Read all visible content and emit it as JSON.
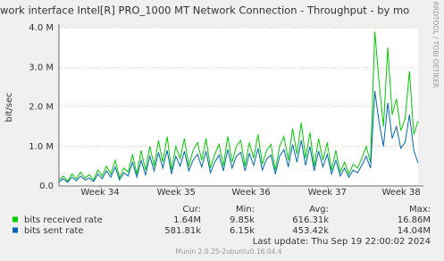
{
  "chart_data": {
    "type": "line",
    "title": "work interface Intel[R] PRO_1000 MT Network Connection - Throughput - by mo",
    "y_label": "bit/sec",
    "watermark": "RRDTOOL / TOBI OETIKER",
    "xlim": [
      0,
      83
    ],
    "xticks": [
      {
        "value": 9.5,
        "label": "Week 34"
      },
      {
        "value": 27.1,
        "label": "Week 35"
      },
      {
        "value": 44.4,
        "label": "Week 36"
      },
      {
        "value": 62,
        "label": "Week 37"
      },
      {
        "value": 79.1,
        "label": "Week 38"
      }
    ],
    "ylim": [
      0,
      4000000
    ],
    "yticks": [
      {
        "value": 0,
        "label": "0.0"
      },
      {
        "value": 1000000,
        "label": "1.0 M"
      },
      {
        "value": 2000000,
        "label": "2.0 M"
      },
      {
        "value": 3000000,
        "label": "3.0 M"
      },
      {
        "value": 4000000,
        "label": "4.0 M"
      }
    ],
    "grid": true,
    "stat_headers": [
      "Cur:",
      "Min:",
      "Avg:",
      "Max:"
    ],
    "series": [
      {
        "name": "bits received rate",
        "color": "#00cc00",
        "stats": [
          "1.64M",
          "9.85k",
          "616.31k",
          "16.86M"
        ],
        "values": [
          150000,
          250000,
          120000,
          300000,
          180000,
          350000,
          200000,
          280000,
          150000,
          400000,
          250000,
          500000,
          300000,
          650000,
          200000,
          450000,
          350000,
          800000,
          300000,
          900000,
          400000,
          1000000,
          500000,
          1150000,
          600000,
          1250000,
          400000,
          1000000,
          700000,
          1200000,
          500000,
          900000,
          1100000,
          650000,
          1200000,
          450000,
          800000,
          1050000,
          500000,
          1250000,
          600000,
          1000000,
          1150000,
          500000,
          1100000,
          700000,
          1300000,
          550000,
          900000,
          1050000,
          400000,
          1000000,
          1250000,
          650000,
          1450000,
          800000,
          1600000,
          700000,
          1350000,
          500000,
          1200000,
          650000,
          1100000,
          400000,
          900000,
          350000,
          600000,
          300000,
          550000,
          450000,
          700000,
          1000000,
          600000,
          3900000,
          2600000,
          1500000,
          3500000,
          1800000,
          2200000,
          1400000,
          1700000,
          2900000,
          1300000,
          1640000
        ]
      },
      {
        "name": "bits sent rate",
        "color": "#0066b3",
        "stats": [
          "581.81k",
          "6.15k",
          "453.42k",
          "14.04M"
        ],
        "values": [
          100000,
          180000,
          90000,
          220000,
          130000,
          250000,
          150000,
          200000,
          110000,
          300000,
          180000,
          380000,
          220000,
          480000,
          150000,
          330000,
          250000,
          600000,
          220000,
          650000,
          280000,
          750000,
          380000,
          850000,
          450000,
          900000,
          300000,
          750000,
          500000,
          880000,
          380000,
          650000,
          800000,
          480000,
          880000,
          330000,
          600000,
          780000,
          380000,
          920000,
          450000,
          750000,
          850000,
          380000,
          820000,
          520000,
          950000,
          400000,
          680000,
          780000,
          300000,
          750000,
          920000,
          480000,
          1050000,
          600000,
          1150000,
          520000,
          1000000,
          380000,
          880000,
          480000,
          800000,
          300000,
          650000,
          250000,
          450000,
          220000,
          400000,
          330000,
          520000,
          750000,
          450000,
          2400000,
          1600000,
          1000000,
          2100000,
          1200000,
          1500000,
          950000,
          1100000,
          1800000,
          900000,
          581810
        ]
      }
    ],
    "last_update": "Last update:  Thu Sep 19 22:00:02 2024",
    "footer": "Munin 2.0.25-2ubuntu0.16.04.4"
  }
}
